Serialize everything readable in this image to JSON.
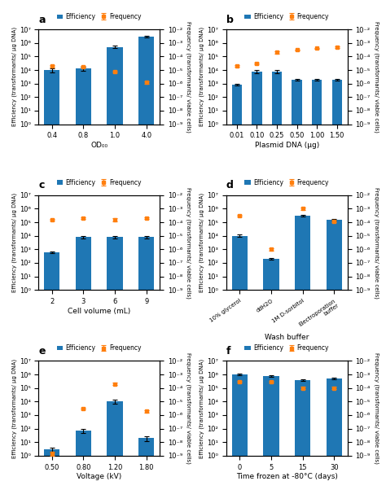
{
  "chart_data": [
    {
      "type": "bar",
      "title": "a",
      "xlabel": "OD₀₀",
      "ylabel": "Efficiency (transformants/ µg DNA)",
      "y2label": "Frequency (transformants/ viable cells)",
      "categories": [
        "0.4",
        "0.8",
        "1.0",
        "4.0"
      ],
      "log": "y",
      "legend": "upper center",
      "ylim": [
        1,
        10000000
      ],
      "yticks": [
        {
          "value": 1,
          "label": "10⁰"
        },
        {
          "value": 10,
          "label": "10¹"
        },
        {
          "value": 100,
          "label": "10²"
        },
        {
          "value": 1000,
          "label": "10³"
        },
        {
          "value": 10000,
          "label": "10⁴"
        },
        {
          "value": 100000,
          "label": "10⁵"
        },
        {
          "value": 1000000,
          "label": "10⁶"
        },
        {
          "value": 10000000,
          "label": "10⁷"
        }
      ],
      "y2lim": [
        1e-09,
        0.01
      ],
      "y2ticks": [
        {
          "value": 1e-09,
          "label": "10⁻⁹"
        },
        {
          "value": 1e-08,
          "label": "10⁻⁸"
        },
        {
          "value": 1e-07,
          "label": "10⁻⁷"
        },
        {
          "value": 1e-06,
          "label": "10⁻⁶"
        },
        {
          "value": 1e-05,
          "label": "10⁻⁵"
        },
        {
          "value": 0.0001,
          "label": "10⁻⁴"
        },
        {
          "value": 0.001,
          "label": "10⁻³"
        },
        {
          "value": 0.01,
          "label": "10⁻²"
        }
      ],
      "series": [
        {
          "name": "Efficiency",
          "type": "bar",
          "values": [
            10000.0,
            13000.0,
            500000.0,
            3000000.0
          ],
          "errors": [
            3000,
            4000,
            100000.0,
            500000.0
          ]
        },
        {
          "name": "Frequency",
          "type": "scatter",
          "axis": "y2",
          "marker": "square",
          "values": [
            2e-05,
            1.8e-05,
            8e-06,
            1.2e-06
          ],
          "errors": [
            3e-06,
            2e-06,
            1e-06,
            2e-07
          ]
        }
      ]
    },
    {
      "type": "bar",
      "title": "b",
      "xlabel": "Plasmid DNA (µg)",
      "ylabel": "Efficiency (transformants/ µg DNA)",
      "y2label": "Frequency (transformants/ viable cells)",
      "categories": [
        "0.01",
        "0.10",
        "0.25",
        "0.50",
        "1.00",
        "1.50"
      ],
      "log": "y",
      "legend": "upper center",
      "ylim": [
        1,
        10000000
      ],
      "yticks": [
        {
          "value": 1,
          "label": "10⁰"
        },
        {
          "value": 10,
          "label": "10¹"
        },
        {
          "value": 100,
          "label": "10²"
        },
        {
          "value": 1000,
          "label": "10³"
        },
        {
          "value": 10000,
          "label": "10⁴"
        },
        {
          "value": 100000,
          "label": "10⁵"
        },
        {
          "value": 1000000,
          "label": "10⁶"
        },
        {
          "value": 10000000,
          "label": "10⁷"
        }
      ],
      "y2lim": [
        1e-09,
        0.01
      ],
      "y2ticks": [
        {
          "value": 1e-09,
          "label": "10⁻⁹"
        },
        {
          "value": 1e-08,
          "label": "10⁻⁸"
        },
        {
          "value": 1e-07,
          "label": "10⁻⁷"
        },
        {
          "value": 1e-06,
          "label": "10⁻⁶"
        },
        {
          "value": 1e-05,
          "label": "10⁻⁵"
        },
        {
          "value": 0.0001,
          "label": "10⁻⁴"
        },
        {
          "value": 0.001,
          "label": "10⁻³"
        },
        {
          "value": 0.01,
          "label": "10⁻²"
        }
      ],
      "series": [
        {
          "name": "Efficiency",
          "type": "bar",
          "values": [
            800.0,
            8000.0,
            8000.0,
            2000.0,
            2000.0,
            2000.0
          ],
          "errors": [
            100.0,
            2000.0,
            2000.0,
            300.0,
            300.0,
            300.0
          ]
        },
        {
          "name": "Frequency",
          "type": "scatter",
          "axis": "y2",
          "marker": "square",
          "values": [
            2e-05,
            3e-05,
            0.0002,
            0.0003,
            0.0004,
            0.0005
          ],
          "errors": [
            3e-06,
            5e-06,
            3e-05,
            4e-05,
            5e-05,
            6e-05
          ]
        }
      ]
    },
    {
      "type": "bar",
      "title": "c",
      "xlabel": "Cell volume (mL)",
      "ylabel": "Efficiency (transformants/ µg DNA)",
      "y2label": "Frequency (transformants/ viable cells)",
      "categories": [
        "2",
        "3",
        "6",
        "9"
      ],
      "log": "y",
      "legend": "upper center",
      "ylim": [
        1,
        10000000
      ],
      "yticks": [
        {
          "value": 1,
          "label": "10⁰"
        },
        {
          "value": 10,
          "label": "10¹"
        },
        {
          "value": 100,
          "label": "10²"
        },
        {
          "value": 1000,
          "label": "10³"
        },
        {
          "value": 10000,
          "label": "10⁴"
        },
        {
          "value": 100000,
          "label": "10⁵"
        },
        {
          "value": 1000000,
          "label": "10⁶"
        },
        {
          "value": 10000000,
          "label": "10⁷"
        }
      ],
      "y2lim": [
        1e-09,
        0.01
      ],
      "y2ticks": [
        {
          "value": 1e-09,
          "label": "10⁻⁹"
        },
        {
          "value": 1e-08,
          "label": "10⁻⁸"
        },
        {
          "value": 1e-07,
          "label": "10⁻⁷"
        },
        {
          "value": 1e-06,
          "label": "10⁻⁶"
        },
        {
          "value": 1e-05,
          "label": "10⁻⁵"
        },
        {
          "value": 0.0001,
          "label": "10⁻⁴"
        },
        {
          "value": 0.001,
          "label": "10⁻³"
        },
        {
          "value": 0.01,
          "label": "10⁻²"
        }
      ],
      "series": [
        {
          "name": "Efficiency",
          "type": "bar",
          "values": [
            600.0,
            8000.0,
            8000.0,
            8000.0
          ],
          "errors": [
            100.0,
            2000.0,
            2000.0,
            2000.0
          ]
        },
        {
          "name": "Frequency",
          "type": "scatter",
          "axis": "y2",
          "marker": "square",
          "values": [
            0.00015,
            0.0002,
            0.00015,
            0.0002
          ],
          "errors": [
            2e-05,
            3e-05,
            4e-05,
            3e-05
          ]
        }
      ]
    },
    {
      "type": "bar",
      "title": "d",
      "xlabel": "Wash buffer",
      "ylabel": "Efficiency (transformants/ µg DNA)",
      "y2label": "Frequency (transformants/ viable cells)",
      "categories": [
        "10% glycerol",
        "ddH2O",
        "1M D-sorbitol",
        "Electroporation\nbuffer"
      ],
      "log": "y",
      "legend": "upper center",
      "ylim": [
        1,
        10000000
      ],
      "yticks": [
        {
          "value": 1,
          "label": "10⁰"
        },
        {
          "value": 10,
          "label": "10¹"
        },
        {
          "value": 100,
          "label": "10²"
        },
        {
          "value": 1000,
          "label": "10³"
        },
        {
          "value": 10000,
          "label": "10⁴"
        },
        {
          "value": 100000,
          "label": "10⁵"
        },
        {
          "value": 1000000,
          "label": "10⁶"
        },
        {
          "value": 10000000,
          "label": "10⁷"
        }
      ],
      "y2lim": [
        1e-09,
        0.01
      ],
      "y2ticks": [
        {
          "value": 1e-09,
          "label": "10⁻⁹"
        },
        {
          "value": 1e-08,
          "label": "10⁻⁸"
        },
        {
          "value": 1e-07,
          "label": "10⁻⁷"
        },
        {
          "value": 1e-06,
          "label": "10⁻⁶"
        },
        {
          "value": 1e-05,
          "label": "10⁻⁵"
        },
        {
          "value": 0.0001,
          "label": "10⁻⁴"
        },
        {
          "value": 0.001,
          "label": "10⁻³"
        },
        {
          "value": 0.01,
          "label": "10⁻²"
        }
      ],
      "series": [
        {
          "name": "Efficiency",
          "type": "bar",
          "values": [
            10000.0,
            200.0,
            300000.0,
            150000.0
          ],
          "errors": [
            2000.0,
            30.0,
            50000.0,
            20000.0
          ]
        },
        {
          "name": "Frequency",
          "type": "scatter",
          "axis": "y2",
          "marker": "square",
          "values": [
            0.0003,
            1e-06,
            0.001,
            0.00012
          ],
          "errors": [
            4e-05,
            2e-07,
            0.0002,
            2e-05
          ]
        }
      ]
    },
    {
      "type": "bar",
      "title": "e",
      "xlabel": "Voltage (kV)",
      "ylabel": "Efficiency (transformants/ µg DNA)",
      "y2label": "Frequency (transformants/ viable cells)",
      "categories": [
        "0.50",
        "0.80",
        "1.20",
        "1.80"
      ],
      "log": "y",
      "legend": "upper center",
      "ylim": [
        1,
        10000000
      ],
      "yticks": [
        {
          "value": 1,
          "label": "10⁰"
        },
        {
          "value": 10,
          "label": "10¹"
        },
        {
          "value": 100,
          "label": "10²"
        },
        {
          "value": 1000,
          "label": "10³"
        },
        {
          "value": 10000,
          "label": "10⁴"
        },
        {
          "value": 100000,
          "label": "10⁵"
        },
        {
          "value": 1000000,
          "label": "10⁶"
        },
        {
          "value": 10000000,
          "label": "10⁷"
        }
      ],
      "y2lim": [
        1e-09,
        0.01
      ],
      "y2ticks": [
        {
          "value": 1e-09,
          "label": "10⁻⁹"
        },
        {
          "value": 1e-08,
          "label": "10⁻⁸"
        },
        {
          "value": 1e-07,
          "label": "10⁻⁷"
        },
        {
          "value": 1e-06,
          "label": "10⁻⁶"
        },
        {
          "value": 1e-05,
          "label": "10⁻⁵"
        },
        {
          "value": 0.0001,
          "label": "10⁻⁴"
        },
        {
          "value": 0.001,
          "label": "10⁻³"
        },
        {
          "value": 0.01,
          "label": "10⁻²"
        }
      ],
      "series": [
        {
          "name": "Efficiency",
          "type": "bar",
          "values": [
            3,
            70.0,
            10000.0,
            20.0
          ],
          "errors": [
            1,
            20.0,
            3000.0,
            8
          ]
        },
        {
          "name": "Frequency",
          "type": "scatter",
          "axis": "y2",
          "marker": "square",
          "values": [
            1.5e-09,
            3e-06,
            0.0002,
            2e-06
          ],
          "errors": [
            5e-10,
            5e-07,
            4e-05,
            4e-07
          ]
        }
      ]
    },
    {
      "type": "bar",
      "title": "f",
      "xlabel": "Time frozen at -80°C (days)",
      "ylabel": "Efficiency (transformants/ µg DNA)",
      "y2label": "Frequency (transformants/ viable cells)",
      "categories": [
        "0",
        "5",
        "15",
        "30"
      ],
      "log": "y",
      "legend": "upper center",
      "ylim": [
        1,
        10000000
      ],
      "yticks": [
        {
          "value": 1,
          "label": "10⁰"
        },
        {
          "value": 10,
          "label": "10¹"
        },
        {
          "value": 100,
          "label": "10²"
        },
        {
          "value": 1000,
          "label": "10³"
        },
        {
          "value": 10000,
          "label": "10⁴"
        },
        {
          "value": 100000,
          "label": "10⁵"
        },
        {
          "value": 1000000,
          "label": "10⁶"
        },
        {
          "value": 10000000,
          "label": "10⁷"
        }
      ],
      "y2lim": [
        1e-09,
        0.01
      ],
      "y2ticks": [
        {
          "value": 1e-09,
          "label": "10⁻⁹"
        },
        {
          "value": 1e-08,
          "label": "10⁻⁸"
        },
        {
          "value": 1e-07,
          "label": "10⁻⁷"
        },
        {
          "value": 1e-06,
          "label": "10⁻⁶"
        },
        {
          "value": 1e-05,
          "label": "10⁻⁵"
        },
        {
          "value": 0.0001,
          "label": "10⁻⁴"
        },
        {
          "value": 0.001,
          "label": "10⁻³"
        },
        {
          "value": 0.01,
          "label": "10⁻²"
        }
      ],
      "series": [
        {
          "name": "Efficiency",
          "type": "bar",
          "values": [
            1000000.0,
            800000.0,
            400000.0,
            500000.0
          ],
          "errors": [
            100000.0,
            100000.0,
            50000.0,
            60000.0
          ]
        },
        {
          "name": "Frequency",
          "type": "scatter",
          "axis": "y2",
          "marker": "square",
          "values": [
            0.0003,
            0.0003,
            0.0001,
            0.0001
          ],
          "errors": [
            4e-05,
            4e-05,
            2e-05,
            2e-05
          ]
        }
      ]
    }
  ]
}
